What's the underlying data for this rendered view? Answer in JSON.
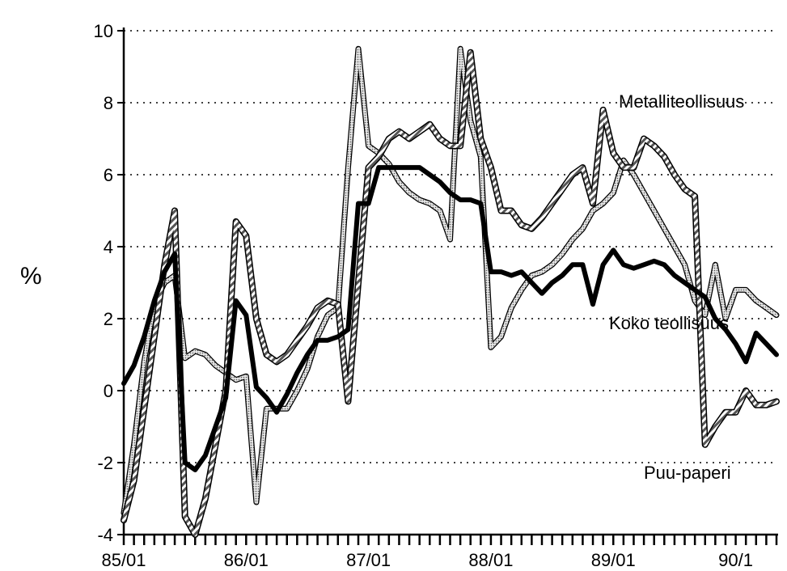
{
  "chart_data": {
    "type": "line",
    "ylabel": "%",
    "ylim": [
      -4,
      10
    ],
    "yticks": [
      "10",
      "8",
      "6",
      "4",
      "2",
      "0",
      "-2",
      "-4"
    ],
    "xticks": [
      "85/01",
      "86/01",
      "87/01",
      "88/01",
      "89/01",
      "90/1"
    ],
    "grid": "horizontal-dotted",
    "months": 65,
    "series": [
      {
        "name": "Metalliteollisuus",
        "style": "double-outline",
        "values": [
          -3.6,
          -2.5,
          -0.5,
          1.5,
          3.5,
          5.0,
          -3.5,
          -4.0,
          -3.0,
          -1.5,
          0.0,
          4.7,
          4.3,
          2.0,
          1.0,
          0.8,
          1.0,
          1.4,
          1.8,
          2.3,
          2.5,
          2.4,
          -0.3,
          3.0,
          6.2,
          6.5,
          7.0,
          7.2,
          7.0,
          7.2,
          7.4,
          7.0,
          6.8,
          6.8,
          9.4,
          7.0,
          6.2,
          5.0,
          5.0,
          4.6,
          4.5,
          4.8,
          5.2,
          5.6,
          6.0,
          6.2,
          5.2,
          7.8,
          6.6,
          6.2,
          6.2,
          7.0,
          6.8,
          6.5,
          6.0,
          5.6,
          5.4,
          -1.5,
          -1.0,
          -0.6,
          -0.6,
          0.0,
          -0.4,
          -0.4,
          -0.3
        ]
      },
      {
        "name": "Koko teollisuus",
        "style": "thick-black",
        "values": [
          0.2,
          0.7,
          1.5,
          2.5,
          3.3,
          3.8,
          -2.0,
          -2.2,
          -1.8,
          -1.0,
          -0.2,
          2.5,
          2.1,
          0.1,
          -0.2,
          -0.6,
          -0.1,
          0.5,
          1.0,
          1.4,
          1.4,
          1.5,
          1.7,
          5.2,
          5.2,
          6.2,
          6.2,
          6.2,
          6.2,
          6.2,
          6.0,
          5.8,
          5.5,
          5.3,
          5.3,
          5.2,
          3.3,
          3.3,
          3.2,
          3.3,
          3.0,
          2.7,
          3.0,
          3.2,
          3.5,
          3.5,
          2.4,
          3.5,
          3.9,
          3.5,
          3.4,
          3.5,
          3.6,
          3.5,
          3.2,
          3.0,
          2.8,
          2.6,
          2.0,
          1.7,
          1.3,
          0.8,
          1.6,
          1.3,
          1.0
        ]
      },
      {
        "name": "Puu-paperi",
        "style": "dotted-fill",
        "values": [
          -3.4,
          -1.5,
          0.8,
          2.4,
          3.0,
          3.2,
          0.9,
          1.1,
          1.0,
          0.7,
          0.5,
          0.3,
          0.4,
          -3.1,
          -0.5,
          -0.5,
          -0.5,
          0.0,
          0.6,
          1.5,
          2.1,
          2.3,
          6.2,
          9.5,
          6.8,
          6.6,
          6.3,
          5.8,
          5.5,
          5.3,
          5.2,
          5.0,
          4.2,
          9.5,
          7.5,
          6.5,
          1.2,
          1.5,
          2.3,
          2.8,
          3.2,
          3.3,
          3.5,
          3.8,
          4.2,
          4.5,
          5.0,
          5.2,
          5.5,
          6.4,
          6.0,
          5.5,
          5.0,
          4.5,
          4.0,
          3.5,
          2.5,
          2.1,
          3.5,
          2.0,
          2.8,
          2.8,
          2.5,
          2.3,
          2.1
        ]
      }
    ],
    "annotations": {
      "metalli": "Metalliteollisuus",
      "koko": "Koko teollisuus",
      "puu": "Puu-paperi"
    }
  }
}
